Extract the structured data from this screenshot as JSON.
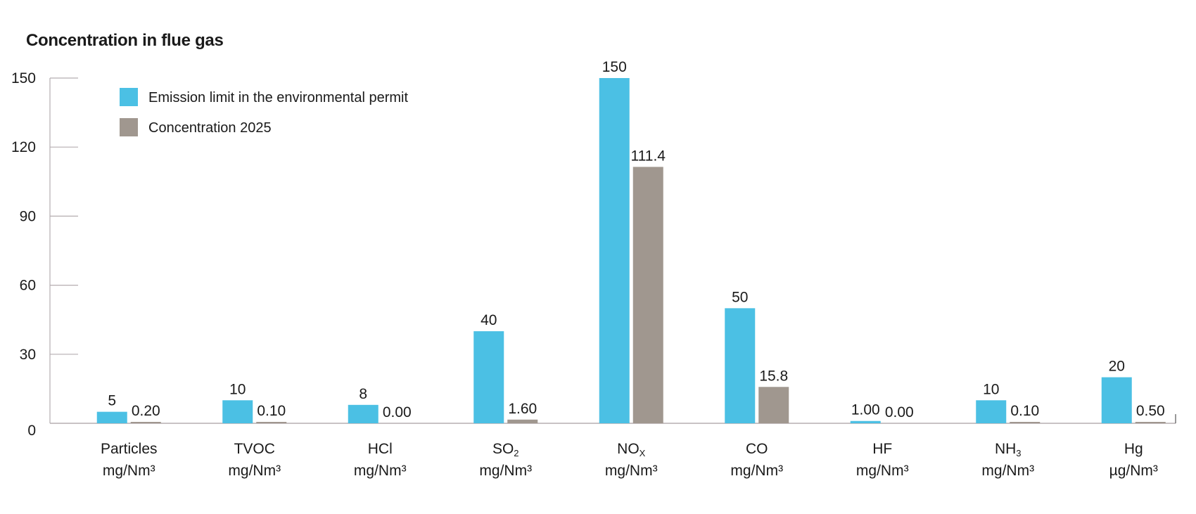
{
  "chart_data": {
    "type": "bar",
    "title": "Concentration in flue gas",
    "xlabel": "",
    "ylabel": "",
    "ylim": [
      0,
      150
    ],
    "yticks": [
      0,
      30,
      60,
      90,
      120,
      150
    ],
    "grid": false,
    "legend_position": "top-left",
    "categories": [
      {
        "name": "Particles",
        "sub": "",
        "unit": "mg/Nm³"
      },
      {
        "name": "TVOC",
        "sub": "",
        "unit": "mg/Nm³"
      },
      {
        "name": "HCl",
        "sub": "",
        "unit": "mg/Nm³"
      },
      {
        "name": "SO",
        "sub": "2",
        "unit": "mg/Nm³"
      },
      {
        "name": "NO",
        "sub": "X",
        "unit": "mg/Nm³"
      },
      {
        "name": "CO",
        "sub": "",
        "unit": "mg/Nm³"
      },
      {
        "name": "HF",
        "sub": "",
        "unit": "mg/Nm³"
      },
      {
        "name": "NH",
        "sub": "3",
        "unit": "mg/Nm³"
      },
      {
        "name": "Hg",
        "sub": "",
        "unit": "µg/Nm³"
      }
    ],
    "series": [
      {
        "name": "Emission limit in the environmental permit",
        "color": "#4bc0e4",
        "values": [
          5,
          10,
          8,
          40,
          150,
          50,
          1.0,
          10,
          20
        ],
        "labels": [
          "5",
          "10",
          "8",
          "40",
          "150",
          "50",
          "1.00",
          "10",
          "20"
        ]
      },
      {
        "name": "Concentration 2025",
        "color": "#a0978f",
        "values": [
          0.2,
          0.1,
          0.0,
          1.6,
          111.4,
          15.8,
          0.0,
          0.1,
          0.5
        ],
        "labels": [
          "0.20",
          "0.10",
          "0.00",
          "1.60",
          "111.4",
          "15.8",
          "0.00",
          "0.10",
          "0.50"
        ]
      }
    ],
    "axis_color": "#b5adb0"
  }
}
